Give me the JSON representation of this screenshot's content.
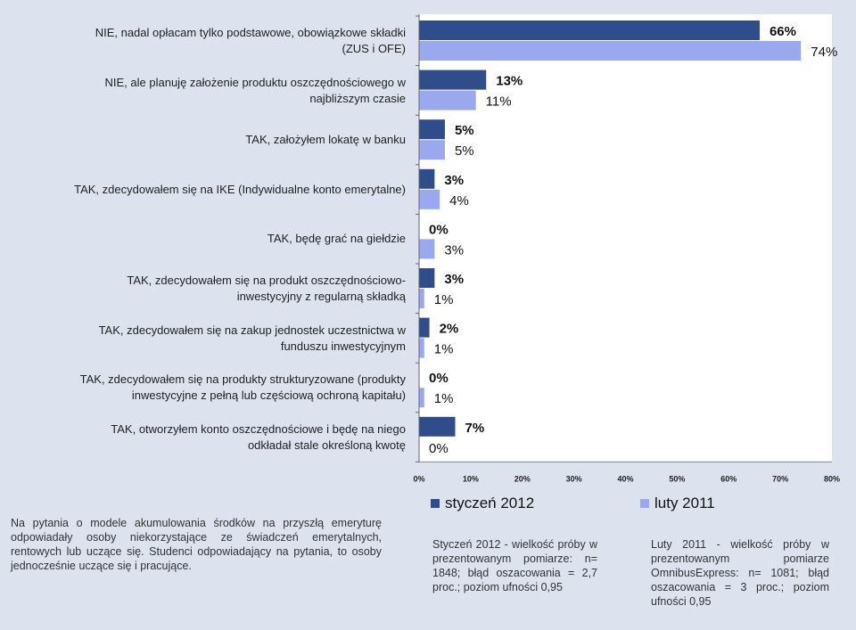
{
  "chart_data": {
    "type": "bar",
    "orientation": "horizontal",
    "categories": [
      [
        "NIE, nadal opłacam tylko podstawowe, obowiązkowe składki",
        "(ZUS i OFE)"
      ],
      [
        "NIE, ale planuję założenie produktu oszczędnościowego w",
        "najbliższym czasie"
      ],
      [
        "TAK, założyłem lokatę w banku"
      ],
      [
        "TAK, zdecydowałem się na IKE (Indywidualne konto emerytalne)"
      ],
      [
        "TAK, będę grać na giełdzie"
      ],
      [
        "TAK, zdecydowałem się na produkt oszczędnościowo-",
        "inwestycyjny z regularną składką"
      ],
      [
        "TAK, zdecydowałem się na zakup jednostek uczestnictwa w",
        "funduszu inwestycyjnym"
      ],
      [
        "TAK, zdecydowałem się na produkty strukturyzowane (produkty",
        "inwestycyjne z pełną lub częściową ochroną kapitału)"
      ],
      [
        "TAK, otworzyłem konto oszczędnościowe i będę na niego",
        "odkładał stale określoną kwotę"
      ]
    ],
    "series": [
      {
        "name": "styczeń 2012",
        "color": "#2e4d8a",
        "values": [
          66,
          13,
          5,
          3,
          0,
          3,
          2,
          0,
          7
        ]
      },
      {
        "name": "luty 2011",
        "color": "#9aa8ee",
        "values": [
          74,
          11,
          5,
          4,
          3,
          1,
          1,
          1,
          0
        ]
      }
    ],
    "xlim": [
      0,
      80
    ],
    "xticks": [
      "0%",
      "10%",
      "20%",
      "30%",
      "40%",
      "50%",
      "60%",
      "70%",
      "80%"
    ],
    "legend_position": "bottom"
  },
  "notes": {
    "left": "Na pytania o modele akumulowania środków na przyszłą emeryturę odpowiadały osoby niekorzystające ze świadczeń emerytalnych, rentowych lub uczące się. Studenci odpowiadający na pytania, to osoby jednocześnie uczące się i pracujące.",
    "middle": "Styczeń 2012 - wielkość próby w prezentowanym pomiarze: n= 1848; błąd oszacowania = 2,7 proc.; poziom ufności 0,95",
    "right": "Luty 2011 - wielkość próby w prezentowanym pomiarze OmnibusExpress: n= 1081; błąd oszacowania = 3 proc.; poziom ufności 0,95"
  }
}
